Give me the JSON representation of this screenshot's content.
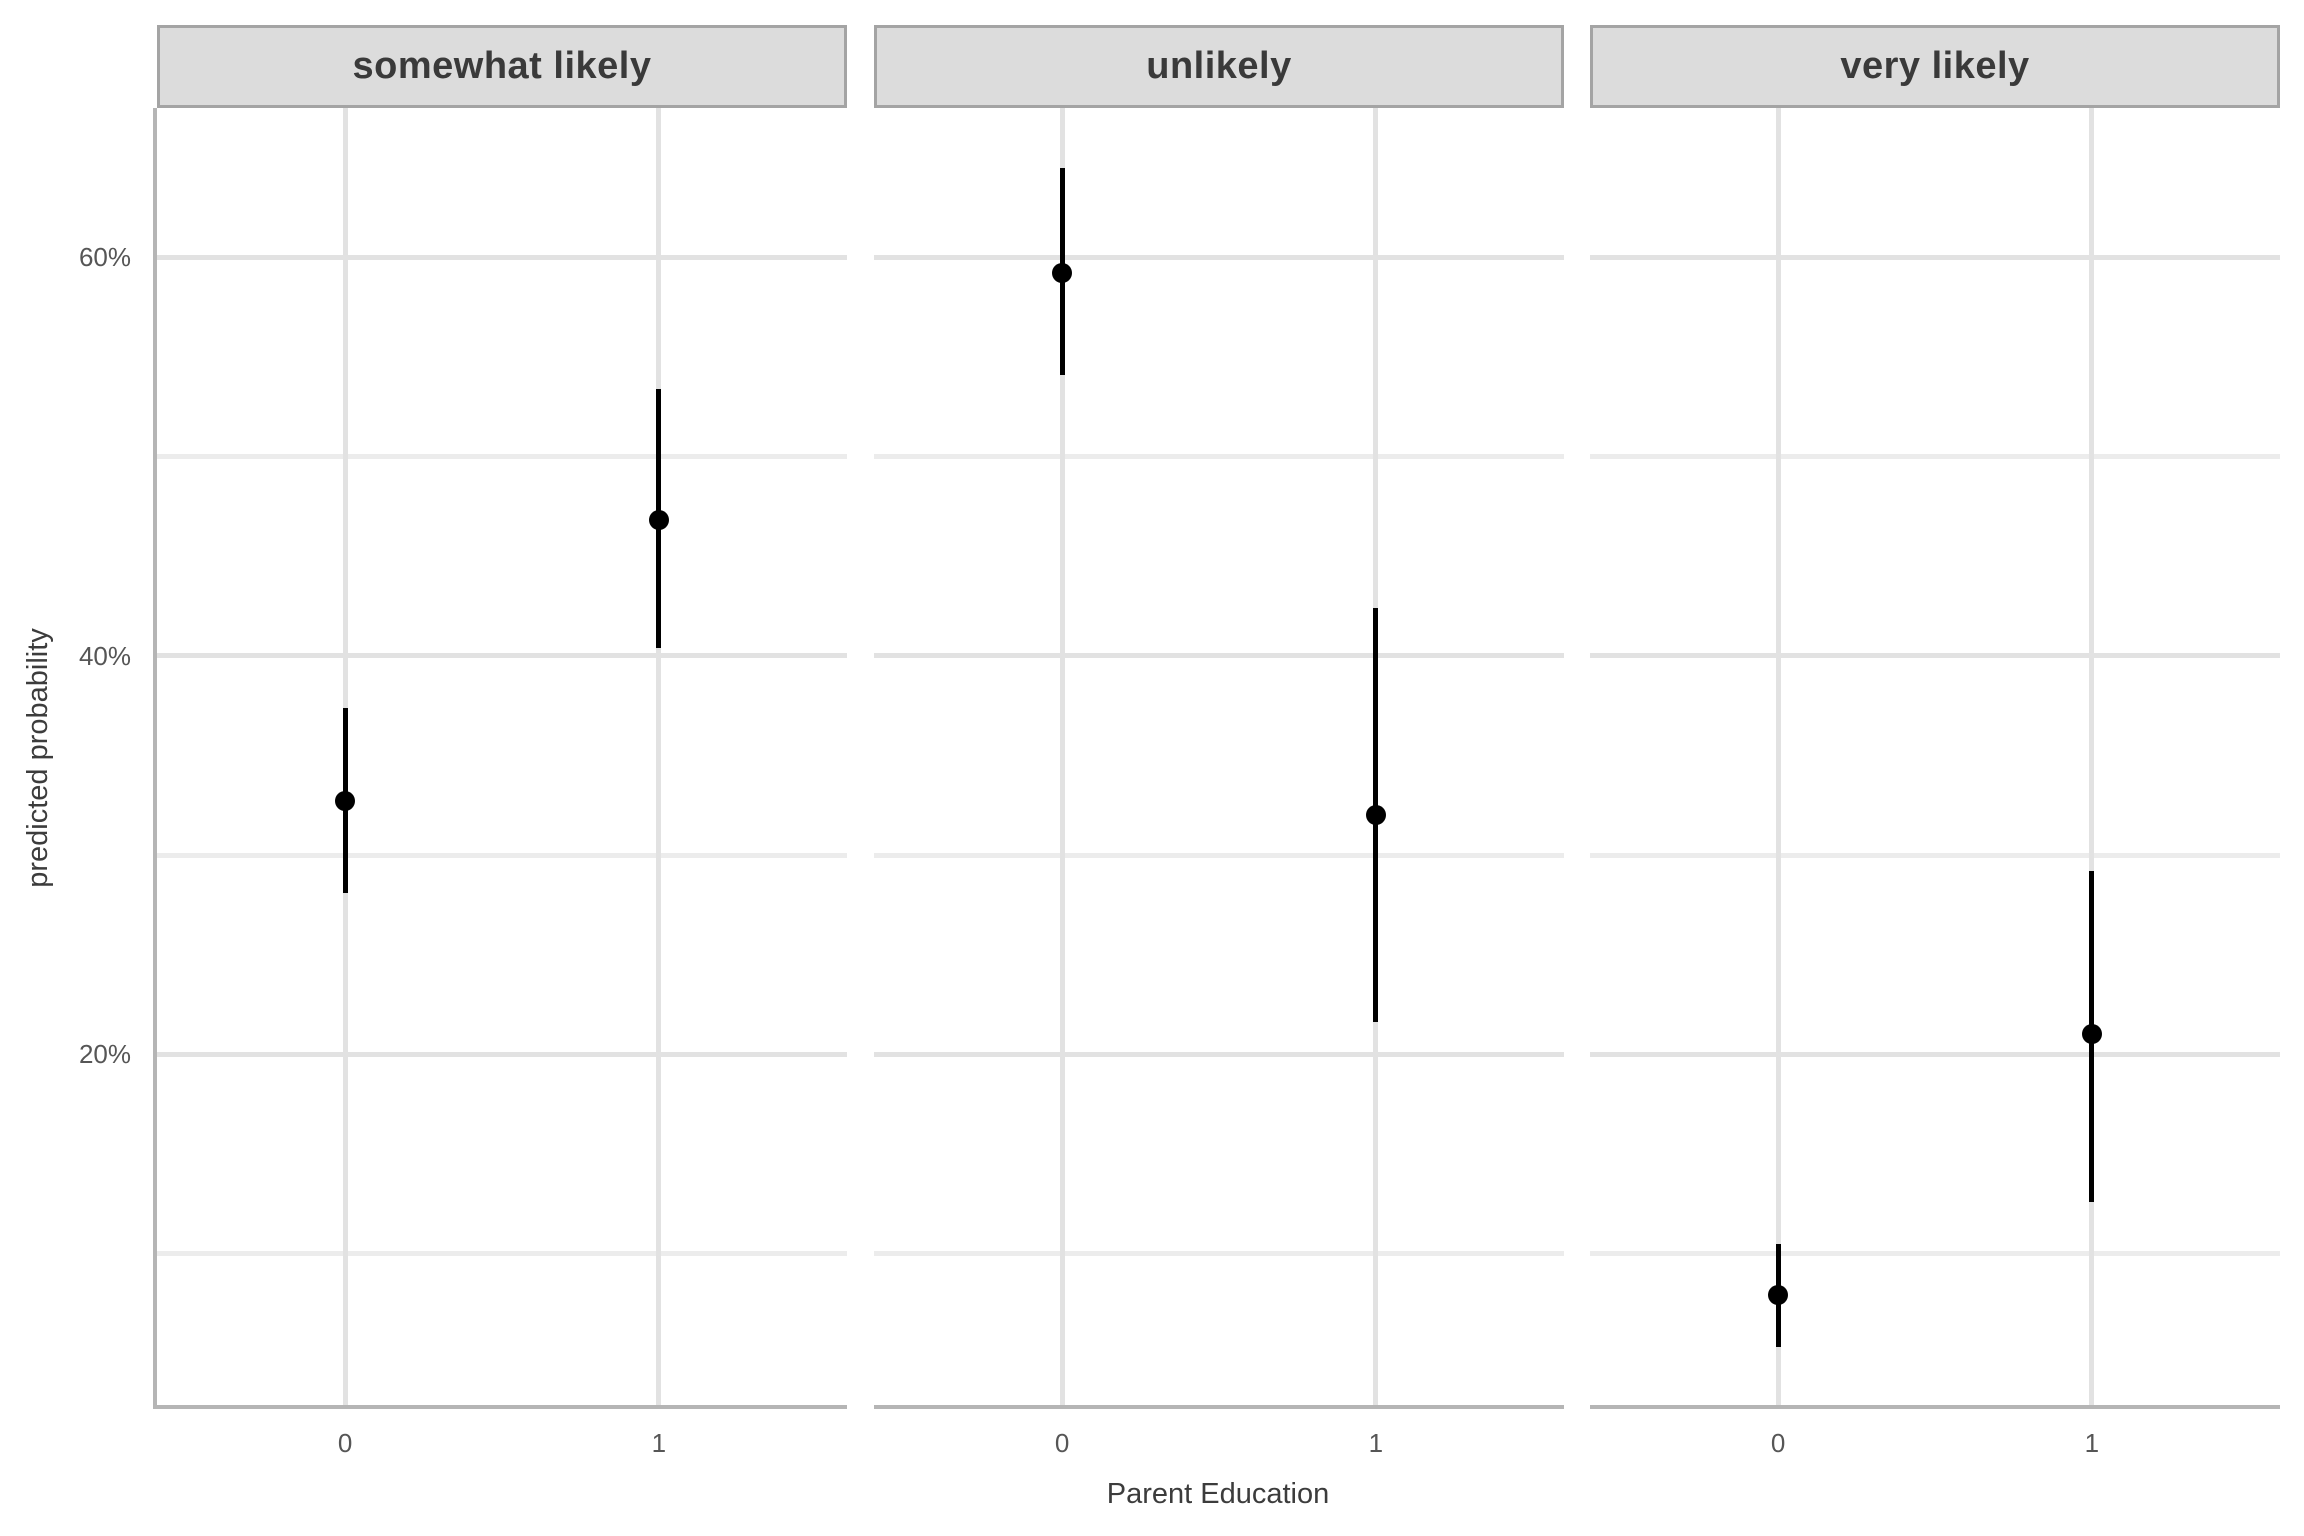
{
  "chart_data": {
    "type": "scatter",
    "geom": "pointrange",
    "title": "",
    "xlabel": "Parent Education",
    "ylabel": "predicted probability",
    "x_categories": [
      "0",
      "1"
    ],
    "ylim": [
      2.3,
      67.5
    ],
    "y_major_ticks": [
      {
        "value": 60,
        "label": "60%"
      },
      {
        "value": 40,
        "label": "40%"
      },
      {
        "value": 20,
        "label": "20%"
      }
    ],
    "y_minor_ticks": [
      50,
      30,
      10
    ],
    "grid": "on",
    "legend": "none",
    "facets": [
      {
        "label": "somewhat likely",
        "points": [
          {
            "x": "0",
            "y": 32.7,
            "ymin": 28.1,
            "ymax": 37.4
          },
          {
            "x": "1",
            "y": 46.8,
            "ymin": 40.4,
            "ymax": 53.4
          }
        ]
      },
      {
        "label": "unlikely",
        "points": [
          {
            "x": "0",
            "y": 59.2,
            "ymin": 54.1,
            "ymax": 64.5
          },
          {
            "x": "1",
            "y": 32.0,
            "ymin": 21.6,
            "ymax": 42.4
          }
        ]
      },
      {
        "label": "very likely",
        "points": [
          {
            "x": "0",
            "y": 7.9,
            "ymin": 5.3,
            "ymax": 10.5
          },
          {
            "x": "1",
            "y": 21.0,
            "ymin": 12.6,
            "ymax": 29.2
          }
        ]
      }
    ]
  },
  "style": {
    "background": "#ffffff",
    "strip_fill": "#dcdcdc",
    "strip_border": "#a4a4a4",
    "strip_text": "#3a3a3a",
    "grid_major": "#e2e2e2",
    "grid_minor": "#ececec",
    "axis_line": "#b5b5b5",
    "point_color": "#000000",
    "tick_text": "#565656",
    "axis_title_text": "#3c3c3c"
  }
}
